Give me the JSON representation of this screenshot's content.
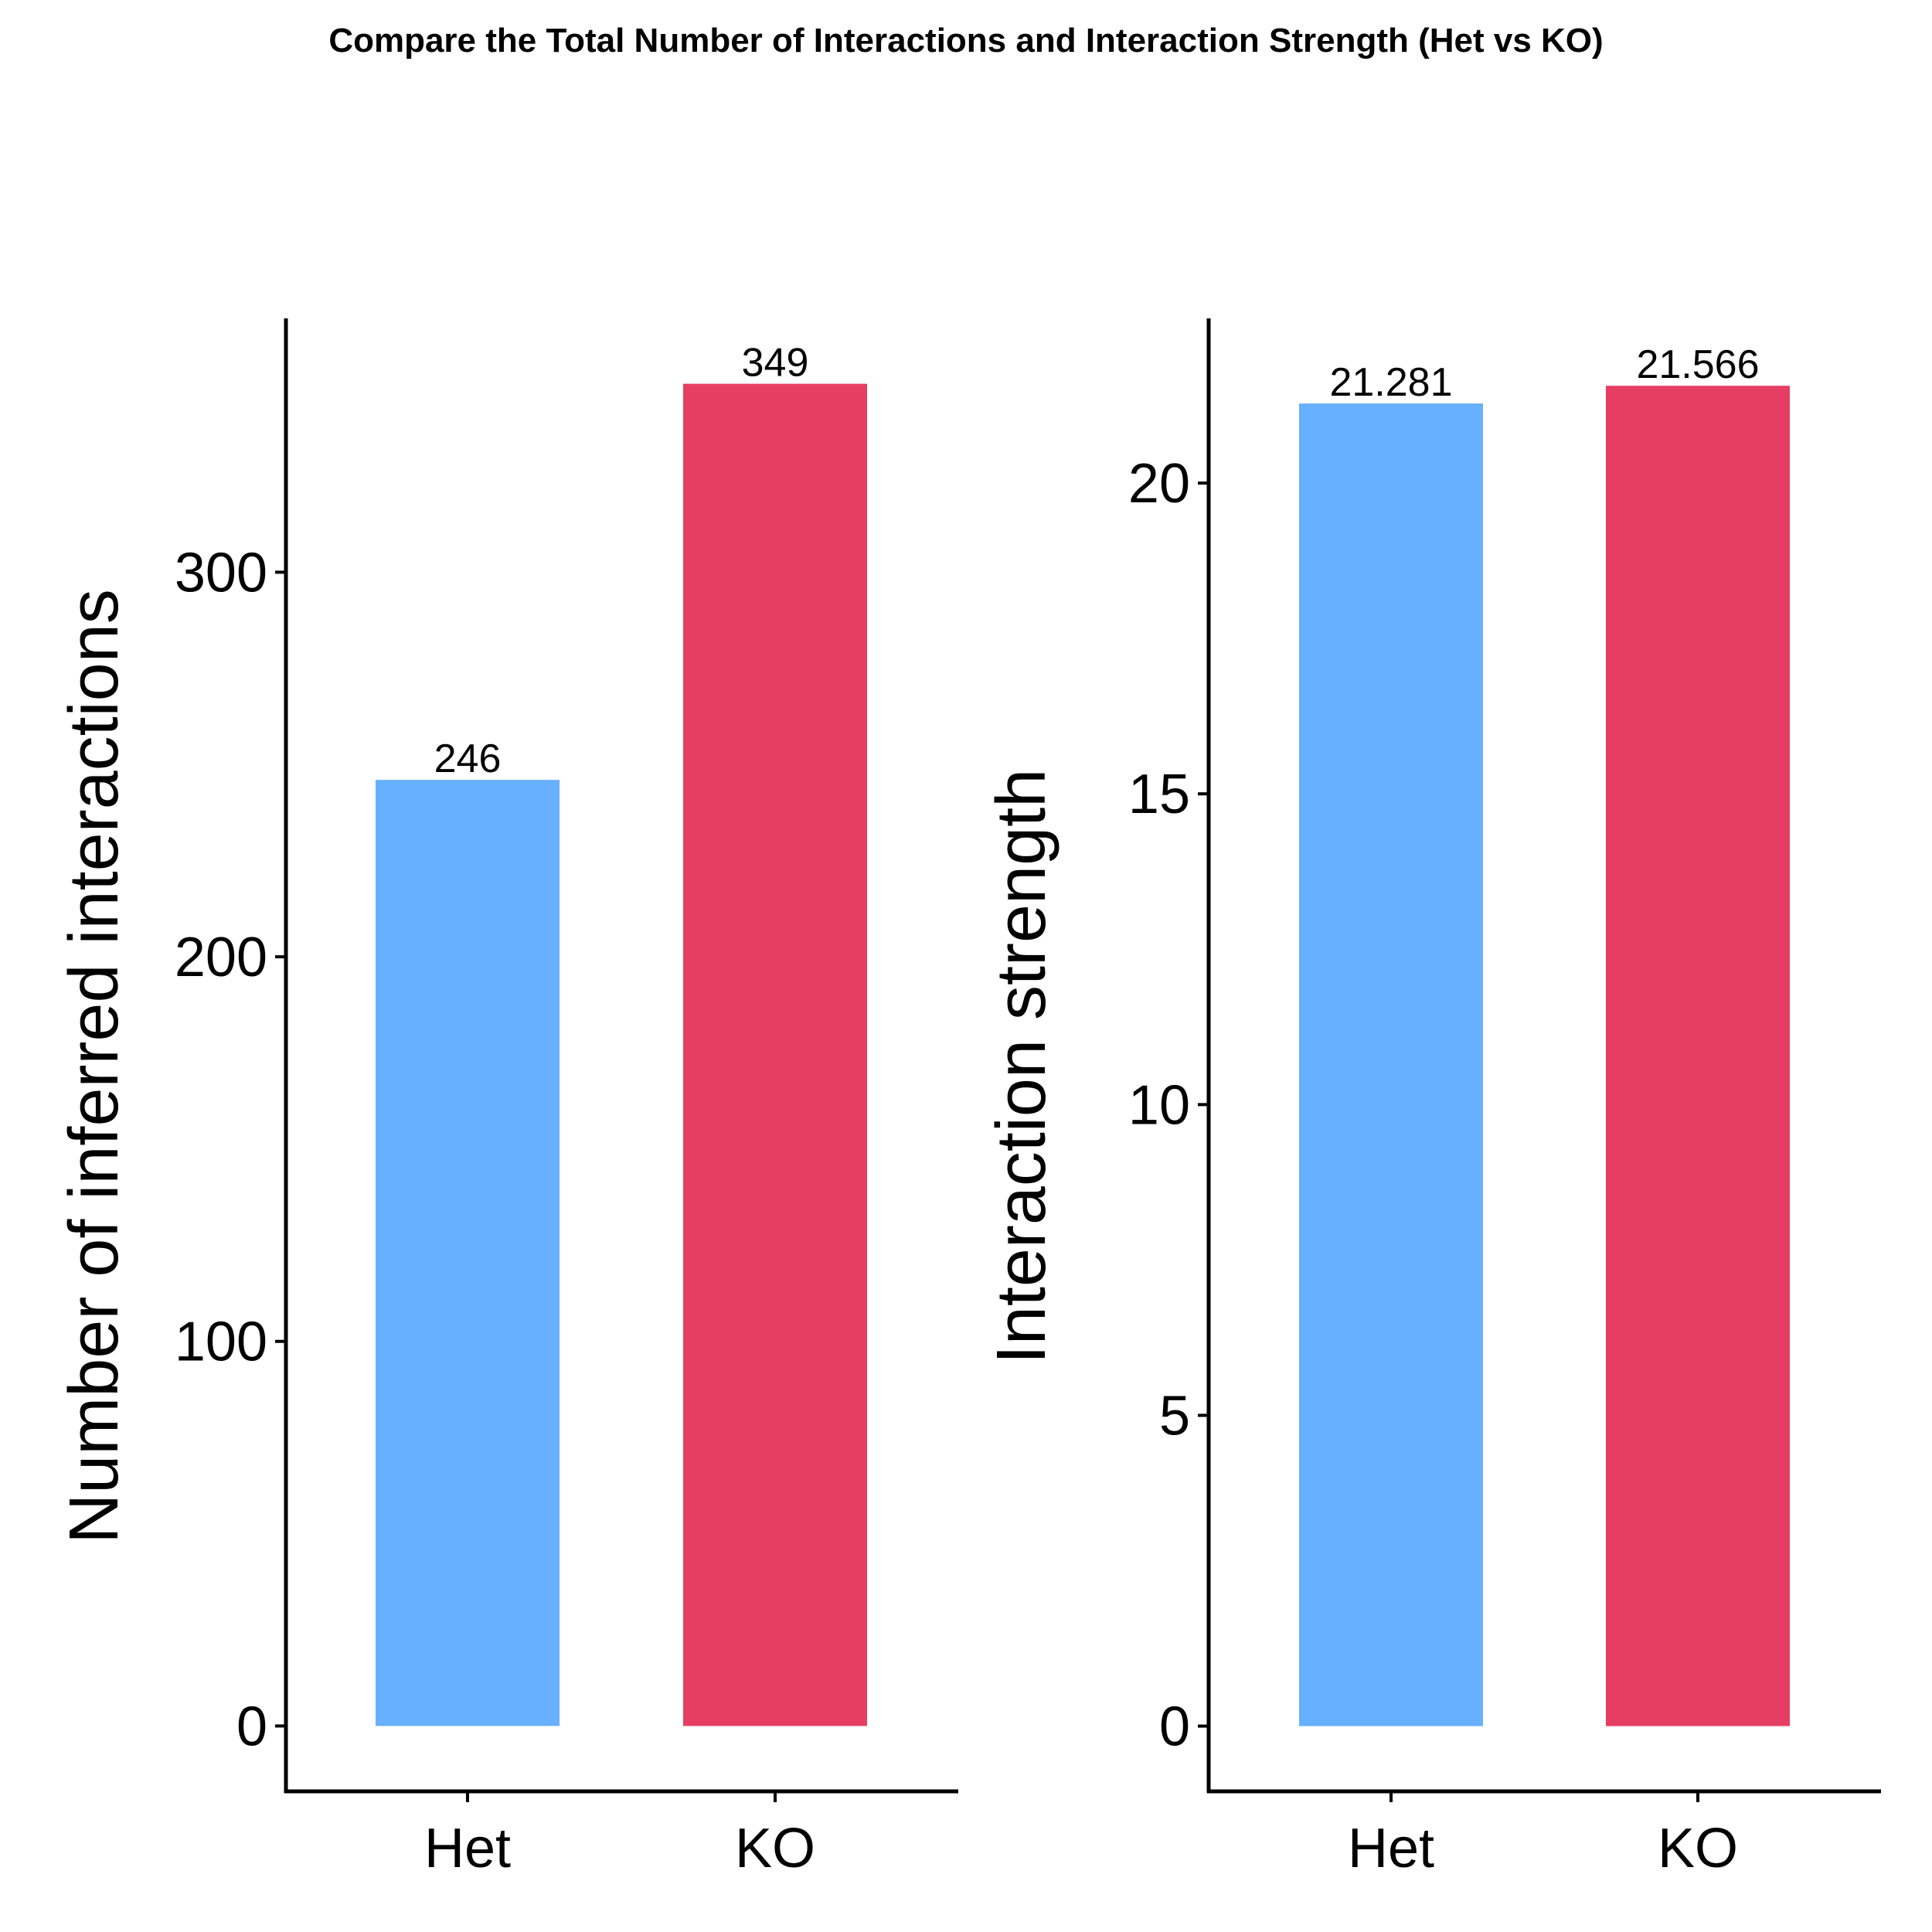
{
  "title": "Compare the Total Number of Interactions and Interaction Strength (Het vs KO)",
  "chart_data": [
    {
      "type": "bar",
      "categories": [
        "Het",
        "KO"
      ],
      "values": [
        246,
        349
      ],
      "value_labels": [
        "246",
        "349"
      ],
      "colors": [
        "#66B0FF",
        "#E63E62"
      ],
      "xlabel": "",
      "ylabel": "Number of inferred interactions",
      "ylim": [
        -17,
        366
      ],
      "yticks": [
        0,
        100,
        200,
        300
      ],
      "grid": false,
      "legend": "none"
    },
    {
      "type": "bar",
      "categories": [
        "Het",
        "KO"
      ],
      "values": [
        21.281,
        21.566
      ],
      "value_labels": [
        "21.281",
        "21.566"
      ],
      "colors": [
        "#66B0FF",
        "#E63E62"
      ],
      "xlabel": "",
      "ylabel": "Interaction strength",
      "ylim": [
        -1.05,
        22.65
      ],
      "yticks": [
        0,
        5,
        10,
        15,
        20
      ],
      "grid": false,
      "legend": "none"
    }
  ]
}
